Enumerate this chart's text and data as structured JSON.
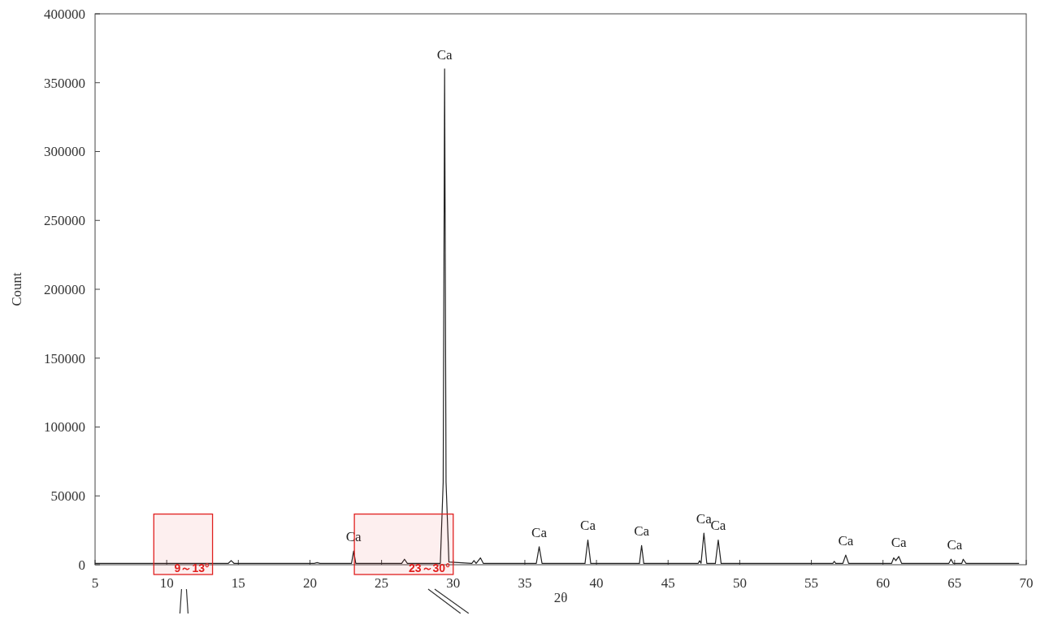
{
  "chart_data": {
    "type": "line",
    "xlabel": "2θ",
    "ylabel": "Count",
    "xlim": [
      5,
      70
    ],
    "xticks": [
      5,
      10,
      15,
      20,
      25,
      30,
      35,
      40,
      45,
      50,
      55,
      60,
      65,
      70
    ],
    "ylim": [
      0,
      400000
    ],
    "yticks": [
      0,
      50000,
      100000,
      150000,
      200000,
      250000,
      300000,
      350000,
      400000
    ],
    "grid": false,
    "marker": "none",
    "line_style": "solid",
    "series": [
      {
        "color": "#222222",
        "x": [
          5,
          14.3,
          14.5,
          14.7,
          20.3,
          20.5,
          20.7,
          22.9,
          23.05,
          23.2,
          26.4,
          26.6,
          26.8,
          29.1,
          29.3,
          29.4,
          29.5,
          29.7,
          31.3,
          31.45,
          31.6,
          31.9,
          32.1,
          35.8,
          36.0,
          36.2,
          39.2,
          39.4,
          39.6,
          43.0,
          43.15,
          43.3,
          47.1,
          47.2,
          47.3,
          47.5,
          47.7,
          48.3,
          48.5,
          48.7,
          56.5,
          56.6,
          56.7,
          57.2,
          57.4,
          57.6,
          60.6,
          60.75,
          60.9,
          61.1,
          61.3,
          64.6,
          64.75,
          64.9,
          65.5,
          65.6,
          65.8,
          69.5
        ],
        "values": [
          1000,
          1000,
          3000,
          1000,
          1000,
          1500,
          1000,
          1000,
          10000,
          1000,
          1000,
          4000,
          1000,
          1000,
          60000,
          360000,
          60000,
          2000,
          1000,
          3000,
          1000,
          5000,
          1000,
          1000,
          13000,
          1000,
          1000,
          18000,
          1000,
          1000,
          14000,
          1000,
          1000,
          3000,
          1000,
          23000,
          1000,
          1000,
          18000,
          1000,
          1000,
          2500,
          1000,
          1000,
          7000,
          1000,
          1000,
          5000,
          3000,
          6000,
          1000,
          1000,
          4000,
          1000,
          1000,
          4000,
          1000,
          1000
        ]
      }
    ],
    "annotations": [
      {
        "text": "Ca",
        "x": 23.05,
        "y": 10000
      },
      {
        "text": "Ca",
        "x": 29.4,
        "y": 360000
      },
      {
        "text": "Ca",
        "x": 36.0,
        "y": 13000
      },
      {
        "text": "Ca",
        "x": 39.4,
        "y": 18000
      },
      {
        "text": "Ca",
        "x": 43.15,
        "y": 14000
      },
      {
        "text": "Ca",
        "x": 47.5,
        "y": 23000
      },
      {
        "text": "Ca",
        "x": 48.5,
        "y": 18000
      },
      {
        "text": "Ca",
        "x": 57.4,
        "y": 7000
      },
      {
        "text": "Ca",
        "x": 61.1,
        "y": 6000
      },
      {
        "text": "Ca",
        "x": 65.0,
        "y": 4000
      }
    ],
    "bands": [
      {
        "axis": "x",
        "from": 9.1,
        "to": 13.2,
        "label": "9～13°",
        "color": "#e0201f"
      },
      {
        "axis": "x",
        "from": 23.1,
        "to": 30.0,
        "label": "23～30°",
        "color": "#e0201f"
      }
    ]
  }
}
